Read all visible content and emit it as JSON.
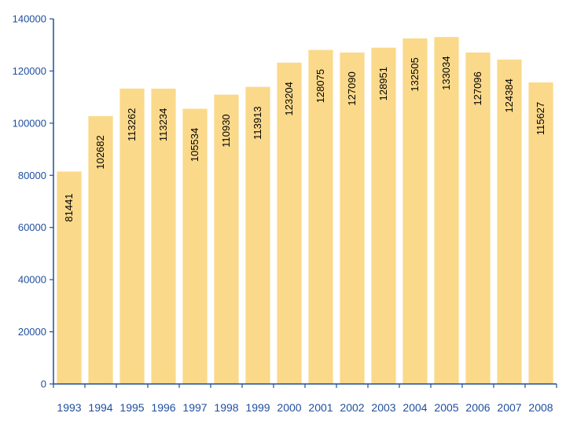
{
  "chart_data": {
    "type": "bar",
    "categories": [
      "1993",
      "1994",
      "1995",
      "1996",
      "1997",
      "1998",
      "1999",
      "2000",
      "2001",
      "2002",
      "2003",
      "2004",
      "2005",
      "2006",
      "2007",
      "2008"
    ],
    "values": [
      81441,
      102682,
      113262,
      113234,
      105534,
      110930,
      113913,
      123204,
      128075,
      127090,
      128951,
      132505,
      133034,
      127096,
      124384,
      115627
    ],
    "data_labels": [
      "81441",
      "102682",
      "113262",
      "113234",
      "105534",
      "110930",
      "113913",
      "123204",
      "128075",
      "127090",
      "128951",
      "132505",
      "133034",
      "127096",
      "124384",
      "115627"
    ],
    "ylim": [
      0,
      140000
    ],
    "yticks": [
      0,
      20000,
      40000,
      60000,
      80000,
      100000,
      120000,
      140000
    ],
    "ytick_labels": [
      "0",
      "20000",
      "40000",
      "60000",
      "80000",
      "100000",
      "120000",
      "140000"
    ],
    "title": "",
    "xlabel": "",
    "ylabel": "",
    "grid": false,
    "legend": "none",
    "colors": {
      "bar": "#fbd98a",
      "axis": "#1f4e9c",
      "tick_text": "#1f4e9c",
      "data_label": "#000000"
    }
  }
}
